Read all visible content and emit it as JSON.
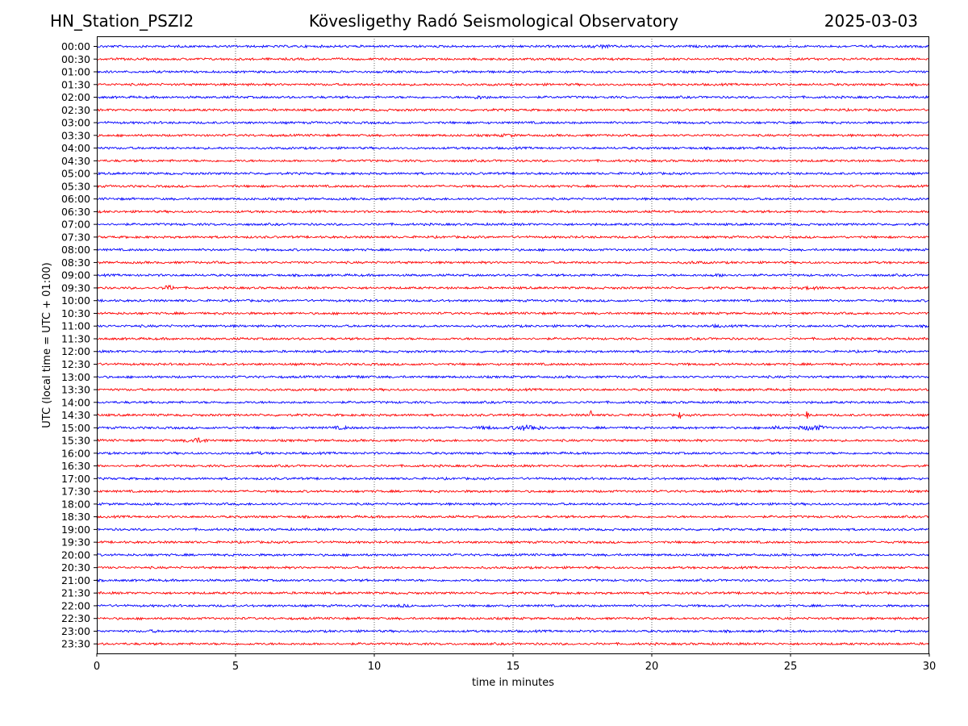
{
  "header": {
    "station": "HN_Station_PSZI2",
    "title": "Kövesligethy Radó Seismological Observatory",
    "date": "2025-03-03"
  },
  "chart_data": {
    "type": "line",
    "title": "Kövesligethy Radó Seismological Observatory",
    "xlabel": "time in minutes",
    "ylabel": "UTC (local time = UTC + 01:00)",
    "xlim": [
      0,
      30
    ],
    "xticks": [
      0,
      5,
      10,
      15,
      20,
      25,
      30
    ],
    "grid": "vertical dotted lines at x ticks",
    "row_labels": [
      "00:00",
      "00:30",
      "01:00",
      "01:30",
      "02:00",
      "02:30",
      "03:00",
      "03:30",
      "04:00",
      "04:30",
      "05:00",
      "05:30",
      "06:00",
      "06:30",
      "07:00",
      "07:30",
      "08:00",
      "08:30",
      "09:00",
      "09:30",
      "10:00",
      "10:30",
      "11:00",
      "11:30",
      "12:00",
      "12:30",
      "13:00",
      "13:30",
      "14:00",
      "14:30",
      "15:00",
      "15:30",
      "16:00",
      "16:30",
      "17:00",
      "17:30",
      "18:00",
      "18:30",
      "19:00",
      "19:30",
      "20:00",
      "20:30",
      "21:00",
      "21:30",
      "22:00",
      "22:30",
      "23:00",
      "23:30"
    ],
    "trace_colors": [
      "#0000ff",
      "#ff0000"
    ],
    "noise_amplitude": 1.5,
    "events": [
      {
        "row": "00:00",
        "x": 18.2,
        "width": 0.6,
        "amp": 2.5
      },
      {
        "row": "02:00",
        "x": 13.8,
        "width": 0.5,
        "amp": 2.5
      },
      {
        "row": "03:30",
        "x": 14.8,
        "width": 0.4,
        "amp": 2.5
      },
      {
        "row": "08:30",
        "x": 21.5,
        "width": 0.6,
        "amp": 2.0
      },
      {
        "row": "09:00",
        "x": 22.5,
        "width": 0.8,
        "amp": 2.0
      },
      {
        "row": "09:30",
        "x": 2.6,
        "width": 0.3,
        "amp": 3.5
      },
      {
        "row": "09:30",
        "x": 25.8,
        "width": 0.8,
        "amp": 2.2
      },
      {
        "row": "11:00",
        "x": 22.3,
        "width": 0.6,
        "amp": 2.0
      },
      {
        "row": "13:00",
        "x": 9.5,
        "width": 0.5,
        "amp": 2.0
      },
      {
        "row": "14:30",
        "x": 17.8,
        "width": 0.05,
        "amp": 8
      },
      {
        "row": "14:30",
        "x": 21.0,
        "width": 0.05,
        "amp": 6
      },
      {
        "row": "14:30",
        "x": 25.6,
        "width": 0.05,
        "amp": 7
      },
      {
        "row": "15:00",
        "x": 8.8,
        "width": 0.5,
        "amp": 2.5
      },
      {
        "row": "15:00",
        "x": 14.0,
        "width": 0.5,
        "amp": 2.5
      },
      {
        "row": "15:00",
        "x": 15.5,
        "width": 0.6,
        "amp": 4
      },
      {
        "row": "15:00",
        "x": 24.4,
        "width": 0.4,
        "amp": 2.5
      },
      {
        "row": "15:00",
        "x": 25.8,
        "width": 0.5,
        "amp": 4
      },
      {
        "row": "15:30",
        "x": 3.6,
        "width": 0.5,
        "amp": 3.5
      },
      {
        "row": "16:00",
        "x": 5.8,
        "width": 0.5,
        "amp": 2.0
      },
      {
        "row": "22:00",
        "x": 11.0,
        "width": 0.4,
        "amp": 2.2
      },
      {
        "row": "23:00",
        "x": 2.0,
        "width": 0.4,
        "amp": 2.0
      }
    ]
  }
}
